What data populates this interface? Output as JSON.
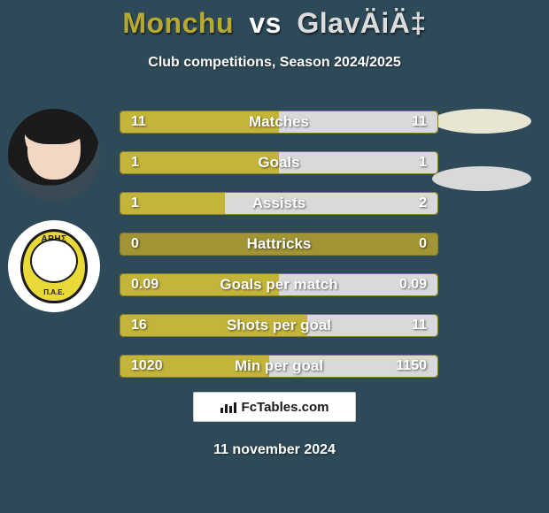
{
  "background_color": "#2e4a58",
  "title": {
    "player1": "Monchu",
    "vs": "vs",
    "player2": "GlavÄiÄ‡",
    "player1_color": "#b7aa2e",
    "vs_color": "#ffffff",
    "player2_color": "#dcdcdc",
    "fontsize": 32
  },
  "subtitle": "Club competitions, Season 2024/2025",
  "subtitle_fontsize": 16,
  "avatars": {
    "player1_bg": "#1a1a1a",
    "club_bg": "#ffffff",
    "club_badge_bg": "#e8d838",
    "club_text_top": "APHΣ",
    "club_text_bottom": "Π.A.E."
  },
  "ellipses": {
    "color1": "#e8e6d2",
    "color2": "#d9d9d9"
  },
  "bars": {
    "track_color": "#a09434",
    "fill_left_color": "#c3b53a",
    "fill_right_color": "#d9d9d9",
    "label_color": "#ffffff",
    "value_color": "#ffffff",
    "label_fontsize": 17,
    "value_fontsize": 16,
    "rows": [
      {
        "label": "Matches",
        "left": "11",
        "right": "11",
        "left_pct": 50,
        "right_pct": 50
      },
      {
        "label": "Goals",
        "left": "1",
        "right": "1",
        "left_pct": 50,
        "right_pct": 50
      },
      {
        "label": "Assists",
        "left": "1",
        "right": "2",
        "left_pct": 33,
        "right_pct": 67
      },
      {
        "label": "Hattricks",
        "left": "0",
        "right": "0",
        "left_pct": 0,
        "right_pct": 0
      },
      {
        "label": "Goals per match",
        "left": "0.09",
        "right": "0.09",
        "left_pct": 50,
        "right_pct": 50
      },
      {
        "label": "Shots per goal",
        "left": "16",
        "right": "11",
        "left_pct": 59,
        "right_pct": 41
      },
      {
        "label": "Min per goal",
        "left": "1020",
        "right": "1150",
        "left_pct": 47,
        "right_pct": 53
      }
    ]
  },
  "branding": "FcTables.com",
  "date": "11 november 2024"
}
